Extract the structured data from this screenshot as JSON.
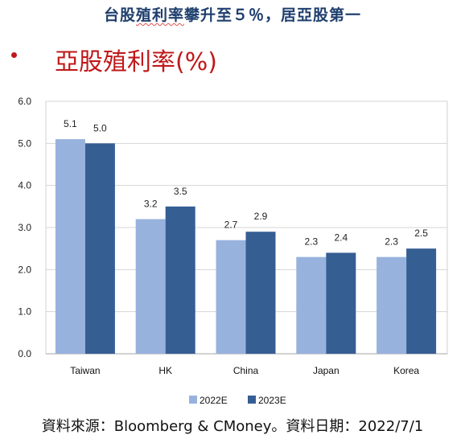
{
  "headline": {
    "part1": "台股",
    "part2": "殖利率",
    "part3": "攀升至５％，居亞股第一"
  },
  "source_note": "資料來源：Bloomberg & CMoney。資料日期：2022/7/1",
  "chart_data": {
    "type": "bar",
    "title": "亞股殖利率(%)",
    "categories": [
      "Taiwan",
      "HK",
      "China",
      "Japan",
      "Korea"
    ],
    "series": [
      {
        "name": "2022E",
        "color": "#98b2de",
        "values": [
          5.1,
          3.2,
          2.7,
          2.3,
          2.3
        ]
      },
      {
        "name": "2023E",
        "color": "#355e92",
        "values": [
          5.0,
          3.5,
          2.9,
          2.4,
          2.5
        ]
      }
    ],
    "yticks": [
      "0.0",
      "1.0",
      "2.0",
      "3.0",
      "4.0",
      "5.0",
      "6.0"
    ],
    "ylim": [
      0,
      6
    ],
    "grid": true,
    "legend_position": "bottom-center",
    "xlabel": "",
    "ylabel": ""
  }
}
